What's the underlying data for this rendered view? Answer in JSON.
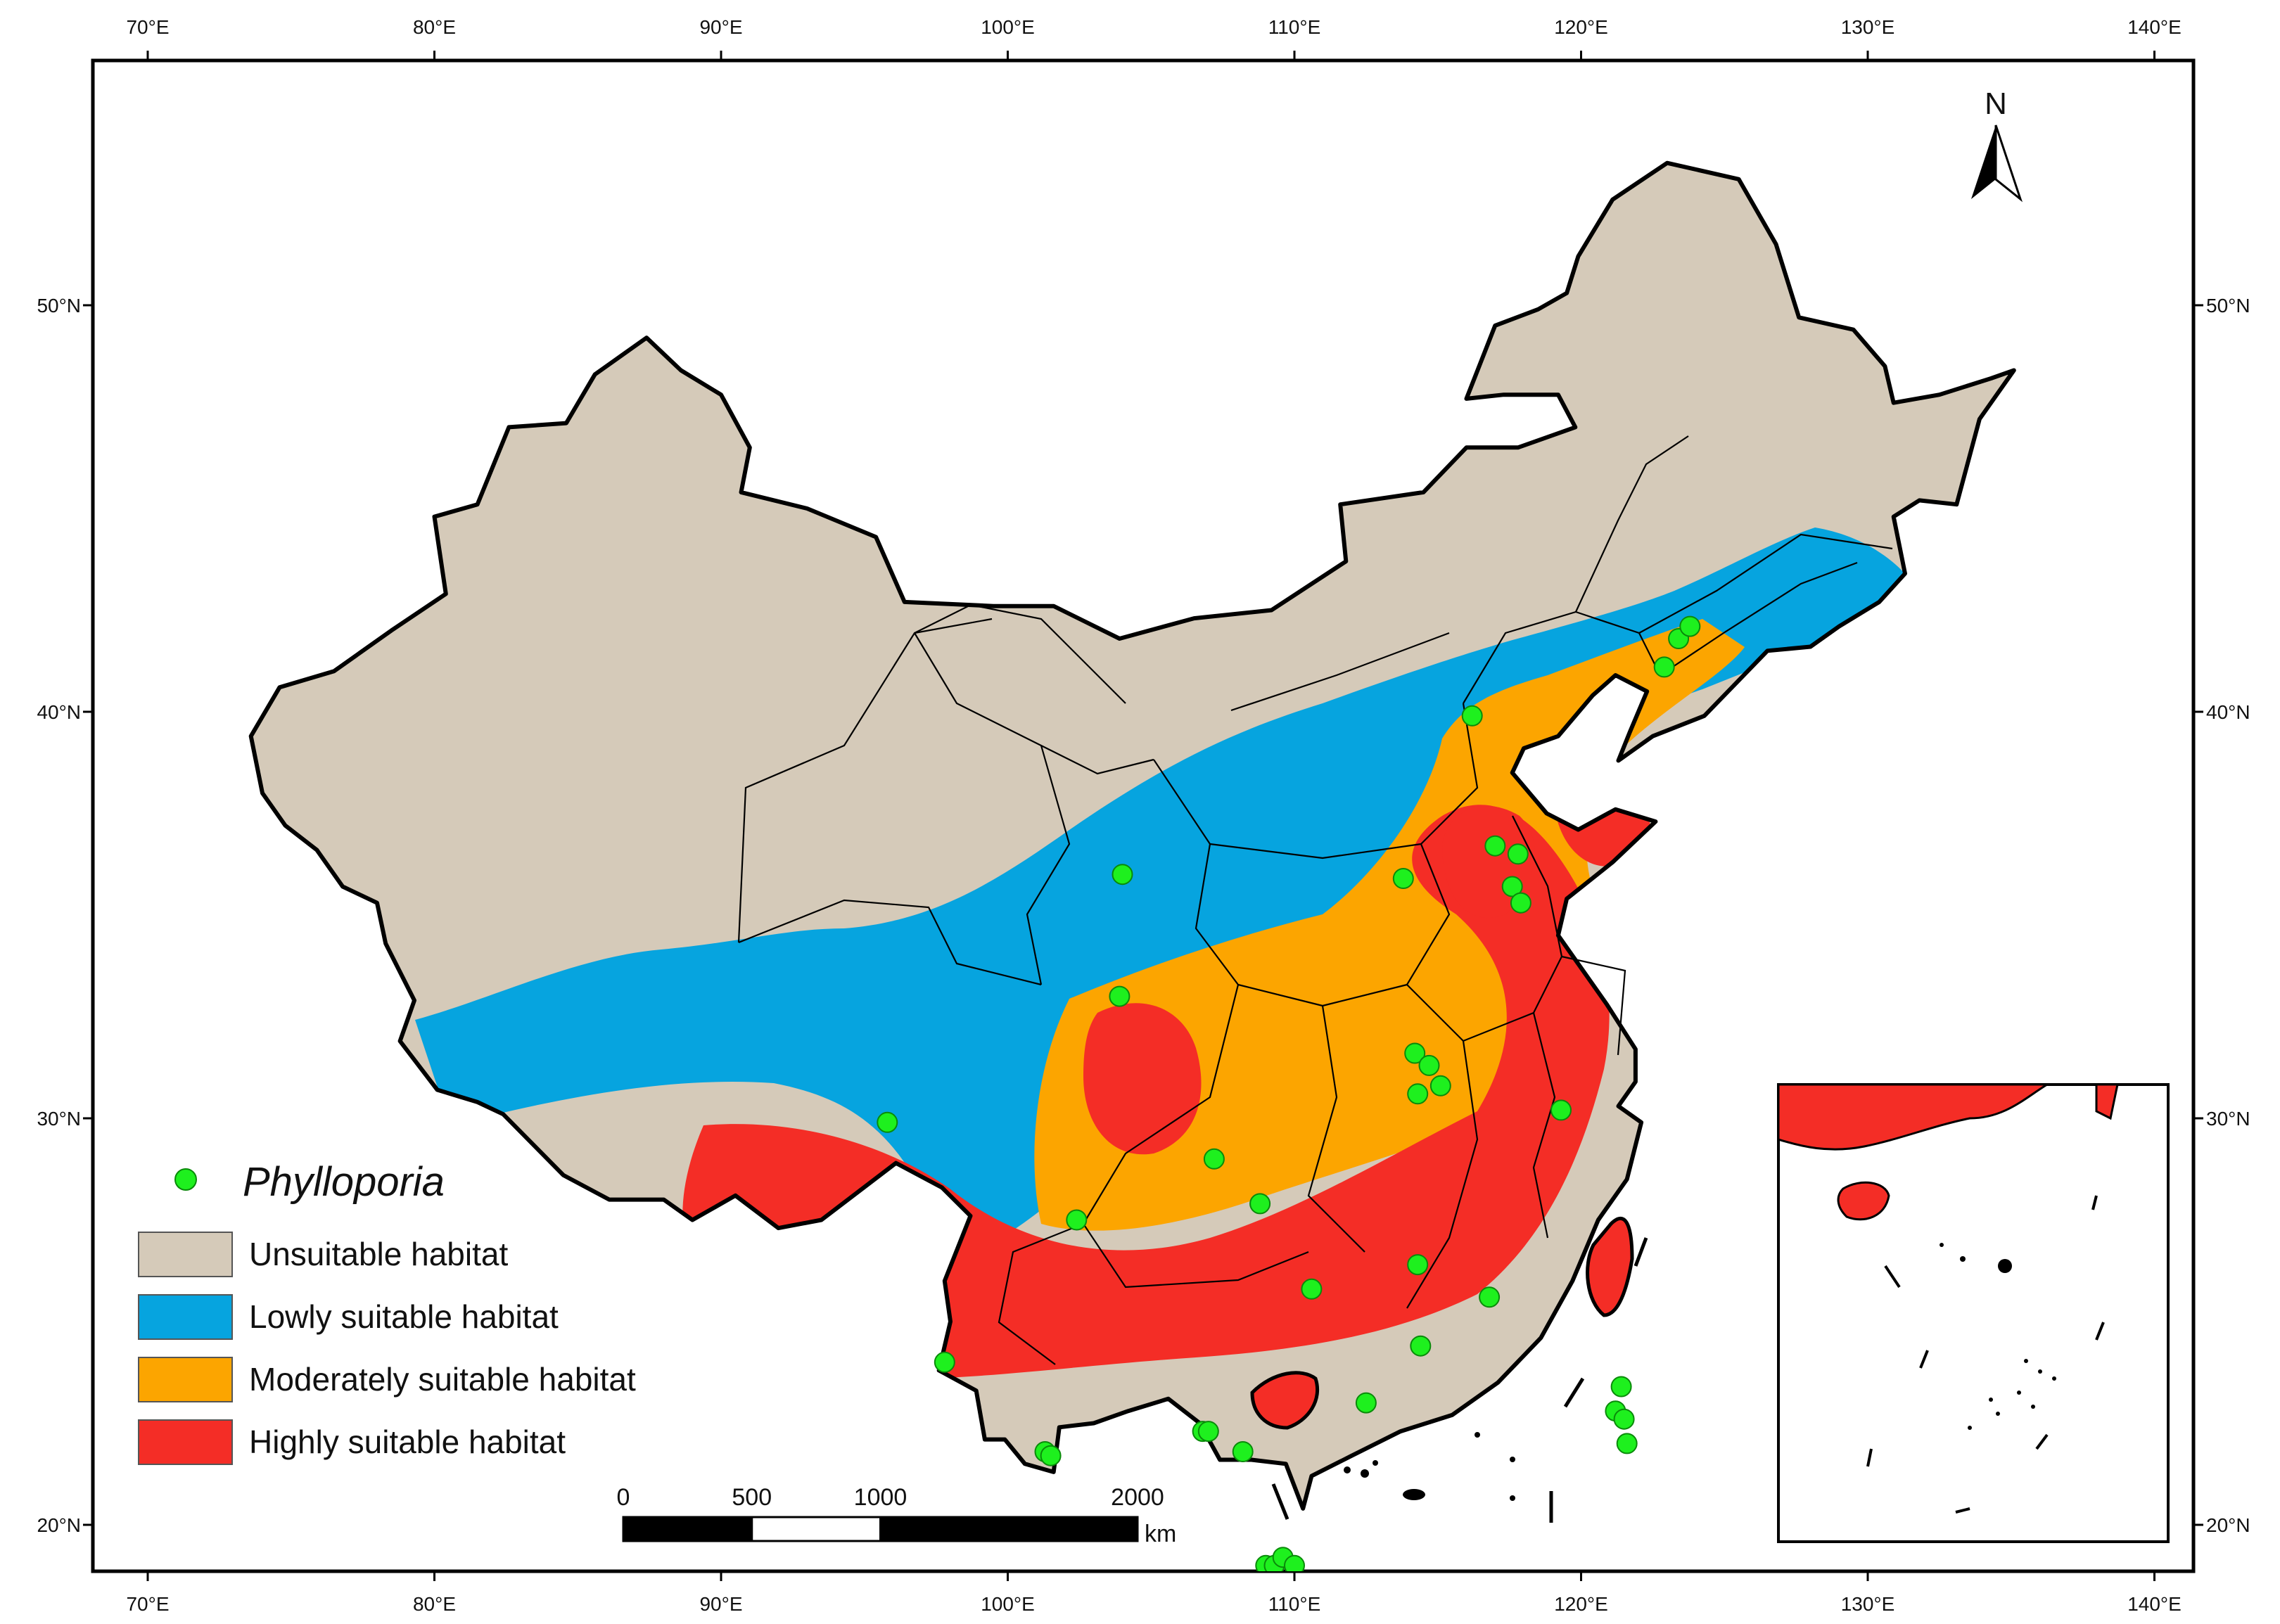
{
  "map": {
    "north_label": "N",
    "lon_ticks": [
      {
        "value": 70,
        "label": "70°E"
      },
      {
        "value": 80,
        "label": "80°E"
      },
      {
        "value": 90,
        "label": "90°E"
      },
      {
        "value": 100,
        "label": "100°E"
      },
      {
        "value": 110,
        "label": "110°E"
      },
      {
        "value": 120,
        "label": "120°E"
      },
      {
        "value": 130,
        "label": "130°E"
      },
      {
        "value": 140,
        "label": "140°E"
      }
    ],
    "lat_ticks": [
      {
        "value": 50,
        "label": "50°N"
      },
      {
        "value": 40,
        "label": "40°N"
      },
      {
        "value": 30,
        "label": "30°N"
      },
      {
        "value": 20,
        "label": "20°N"
      }
    ],
    "scale_bar": {
      "labels": [
        "0",
        "500",
        "1000",
        "2000"
      ],
      "unit": "km"
    },
    "colors": {
      "unsuitable": "#d5cab9",
      "low": "#06a4df",
      "moderate": "#fca500",
      "high": "#f42d26",
      "occurrence": "#1ef01e",
      "border": "#000000"
    }
  },
  "legend": {
    "species": "Phylloporia",
    "items": [
      {
        "key": "unsuitable",
        "label": "Unsuitable habitat",
        "color": "#d5cab9"
      },
      {
        "key": "low",
        "label": "Lowly suitable habitat",
        "color": "#06a4df"
      },
      {
        "key": "moderate",
        "label": "Moderately suitable habitat",
        "color": "#fca500"
      },
      {
        "key": "high",
        "label": "Highly suitable habitat",
        "color": "#f42d26"
      }
    ]
  }
}
